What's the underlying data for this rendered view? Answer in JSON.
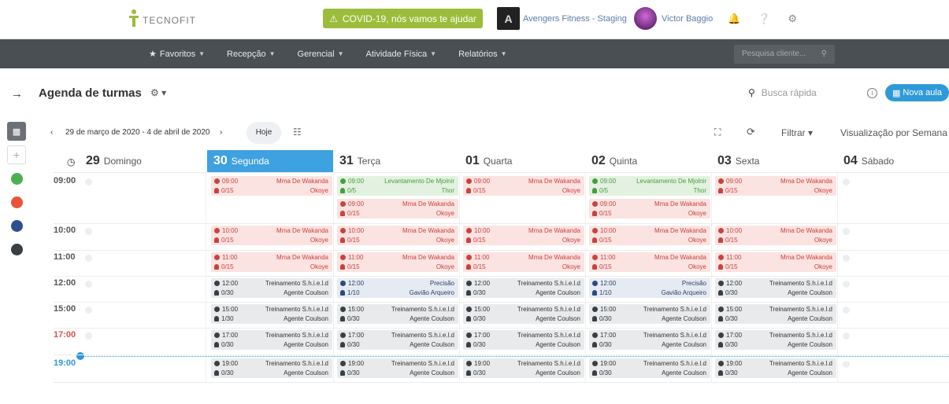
{
  "header": {
    "logo_text": "TECNOFIT",
    "covid_banner": "COVID-19, nós vamos te ajudar",
    "gym_name": "Avengers Fitness - Staging",
    "user_name": "Victor Baggio"
  },
  "nav": {
    "items": [
      {
        "label": "Favoritos"
      },
      {
        "label": "Recepção"
      },
      {
        "label": "Gerencial"
      },
      {
        "label": "Atividade Física"
      },
      {
        "label": "Relatórios"
      }
    ],
    "search_placeholder": "Pesquisa cliente..."
  },
  "page": {
    "title": "Agenda de turmas",
    "quick_search": "Busca rápida",
    "new_class": "Nova aula"
  },
  "toolbar": {
    "date_range": "29 de março de 2020 - 4 de abril de 2020",
    "today": "Hoje",
    "filter": "Filtrar",
    "view": "Visualização por Semana"
  },
  "colors": {
    "accent": "#3ea1e0",
    "nav_bg": "#4a4f54",
    "covid": "#9bbd3b",
    "red": "#c9433e",
    "green": "#4a9a40",
    "blue": "#2b4a82",
    "dark": "#3a3f44"
  },
  "sidebar_colors": [
    "#4caf50",
    "#e8553a",
    "#2e4f8e",
    "#3a3f44"
  ],
  "days": [
    {
      "num": "29",
      "name": "Domingo"
    },
    {
      "num": "30",
      "name": "Segunda",
      "active": true
    },
    {
      "num": "31",
      "name": "Terça"
    },
    {
      "num": "01",
      "name": "Quarta"
    },
    {
      "num": "02",
      "name": "Quinta"
    },
    {
      "num": "03",
      "name": "Sexta"
    },
    {
      "num": "04",
      "name": "Sábado"
    }
  ],
  "times": [
    {
      "label": "09:00"
    },
    {
      "label": "10:00"
    },
    {
      "label": "11:00"
    },
    {
      "label": "12:00"
    },
    {
      "label": "15:00"
    },
    {
      "label": "17:00",
      "style": "red"
    },
    {
      "label": "19:00",
      "style": "blue"
    }
  ],
  "events": [
    {
      "day": 1,
      "row": 0,
      "slot": 0,
      "color": "red",
      "time": "09:00",
      "name": "Mma De Wakanda",
      "count": "0/15",
      "coach": "Okoye"
    },
    {
      "day": 2,
      "row": 0,
      "slot": 0,
      "color": "green",
      "time": "09:00",
      "name": "Levantamento De Mjolnir",
      "count": "0/5",
      "coach": "Thor"
    },
    {
      "day": 2,
      "row": 0,
      "slot": 1,
      "color": "red",
      "time": "09:00",
      "name": "Mma De Wakanda",
      "count": "0/15",
      "coach": "Okoye"
    },
    {
      "day": 3,
      "row": 0,
      "slot": 0,
      "color": "red",
      "time": "09:00",
      "name": "Mma De Wakanda",
      "count": "0/15",
      "coach": "Okoye"
    },
    {
      "day": 4,
      "row": 0,
      "slot": 0,
      "color": "green",
      "time": "09:00",
      "name": "Levantamento De Mjolnir",
      "count": "0/5",
      "coach": "Thor"
    },
    {
      "day": 4,
      "row": 0,
      "slot": 1,
      "color": "red",
      "time": "09:00",
      "name": "Mma De Wakanda",
      "count": "0/15",
      "coach": "Okoye"
    },
    {
      "day": 5,
      "row": 0,
      "slot": 0,
      "color": "red",
      "time": "09:00",
      "name": "Mma De Wakanda",
      "count": "0/15",
      "coach": "Okoye"
    },
    {
      "day": 1,
      "row": 1,
      "slot": 0,
      "color": "red",
      "time": "10:00",
      "name": "Mma De Wakanda",
      "count": "0/15",
      "coach": "Okoye"
    },
    {
      "day": 2,
      "row": 1,
      "slot": 0,
      "color": "red",
      "time": "10:00",
      "name": "Mma De Wakanda",
      "count": "0/15",
      "coach": "Okoye"
    },
    {
      "day": 3,
      "row": 1,
      "slot": 0,
      "color": "red",
      "time": "10:00",
      "name": "Mma De Wakanda",
      "count": "0/15",
      "coach": "Okoye"
    },
    {
      "day": 4,
      "row": 1,
      "slot": 0,
      "color": "red",
      "time": "10:00",
      "name": "Mma De Wakanda",
      "count": "0/15",
      "coach": "Okoye"
    },
    {
      "day": 5,
      "row": 1,
      "slot": 0,
      "color": "red",
      "time": "10:00",
      "name": "Mma De Wakanda",
      "count": "0/15",
      "coach": "Okoye"
    },
    {
      "day": 1,
      "row": 2,
      "slot": 0,
      "color": "red",
      "time": "11:00",
      "name": "Mma De Wakanda",
      "count": "0/15",
      "coach": "Okoye"
    },
    {
      "day": 2,
      "row": 2,
      "slot": 0,
      "color": "red",
      "time": "11:00",
      "name": "Mma De Wakanda",
      "count": "0/15",
      "coach": "Okoye"
    },
    {
      "day": 3,
      "row": 2,
      "slot": 0,
      "color": "red",
      "time": "11:00",
      "name": "Mma De Wakanda",
      "count": "0/15",
      "coach": "Okoye"
    },
    {
      "day": 4,
      "row": 2,
      "slot": 0,
      "color": "red",
      "time": "11:00",
      "name": "Mma De Wakanda",
      "count": "0/15",
      "coach": "Okoye"
    },
    {
      "day": 5,
      "row": 2,
      "slot": 0,
      "color": "red",
      "time": "11:00",
      "name": "Mma De Wakanda",
      "count": "0/15",
      "coach": "Okoye"
    },
    {
      "day": 1,
      "row": 3,
      "slot": 0,
      "color": "dark",
      "time": "12:00",
      "name": "Treinamento S.h.i.e.l.d",
      "count": "0/30",
      "coach": "Agente Coulson"
    },
    {
      "day": 2,
      "row": 3,
      "slot": 0,
      "color": "blue",
      "time": "12:00",
      "name": "Precisão",
      "count": "1/10",
      "coach": "Gavião Arqueiro"
    },
    {
      "day": 3,
      "row": 3,
      "slot": 0,
      "color": "dark",
      "time": "12:00",
      "name": "Treinamento S.h.i.e.l.d",
      "count": "0/30",
      "coach": "Agente Coulson"
    },
    {
      "day": 4,
      "row": 3,
      "slot": 0,
      "color": "blue",
      "time": "12:00",
      "name": "Precisão",
      "count": "1/10",
      "coach": "Gavião Arqueiro"
    },
    {
      "day": 5,
      "row": 3,
      "slot": 0,
      "color": "dark",
      "time": "12:00",
      "name": "Treinamento S.h.i.e.l.d",
      "count": "0/30",
      "coach": "Agente Coulson"
    },
    {
      "day": 1,
      "row": 4,
      "slot": 0,
      "color": "dark",
      "time": "15:00",
      "name": "Treinamento S.h.i.e.l.d",
      "count": "1/30",
      "coach": "Agente Coulson"
    },
    {
      "day": 2,
      "row": 4,
      "slot": 0,
      "color": "dark",
      "time": "15:00",
      "name": "Treinamento S.h.i.e.l.d",
      "count": "0/30",
      "coach": "Agente Coulson"
    },
    {
      "day": 3,
      "row": 4,
      "slot": 0,
      "color": "dark",
      "time": "15:00",
      "name": "Treinamento S.h.i.e.l.d",
      "count": "0/30",
      "coach": "Agente Coulson"
    },
    {
      "day": 4,
      "row": 4,
      "slot": 0,
      "color": "dark",
      "time": "15:00",
      "name": "Treinamento S.h.i.e.l.d",
      "count": "0/30",
      "coach": "Agente Coulson"
    },
    {
      "day": 5,
      "row": 4,
      "slot": 0,
      "color": "dark",
      "time": "15:00",
      "name": "Treinamento S.h.i.e.l.d",
      "count": "0/30",
      "coach": "Agente Coulson"
    },
    {
      "day": 1,
      "row": 5,
      "slot": 0,
      "color": "dark",
      "time": "17:00",
      "name": "Treinamento S.h.i.e.l.d",
      "count": "0/30",
      "coach": "Agente Coulson"
    },
    {
      "day": 2,
      "row": 5,
      "slot": 0,
      "color": "dark",
      "time": "17:00",
      "name": "Treinamento S.h.i.e.l.d",
      "count": "0/30",
      "coach": "Agente Coulson"
    },
    {
      "day": 3,
      "row": 5,
      "slot": 0,
      "color": "dark",
      "time": "17:00",
      "name": "Treinamento S.h.i.e.l.d",
      "count": "0/30",
      "coach": "Agente Coulson"
    },
    {
      "day": 4,
      "row": 5,
      "slot": 0,
      "color": "dark",
      "time": "17:00",
      "name": "Treinamento S.h.i.e.l.d",
      "count": "0/30",
      "coach": "Agente Coulson"
    },
    {
      "day": 5,
      "row": 5,
      "slot": 0,
      "color": "dark",
      "time": "17:00",
      "name": "Treinamento S.h.i.e.l.d",
      "count": "0/30",
      "coach": "Agente Coulson"
    },
    {
      "day": 1,
      "row": 6,
      "slot": 0,
      "color": "dark",
      "time": "19:00",
      "name": "Treinamento S.h.i.e.l.d",
      "count": "0/30",
      "coach": "Agente Coulson"
    },
    {
      "day": 2,
      "row": 6,
      "slot": 0,
      "color": "dark",
      "time": "19:00",
      "name": "Treinamento S.h.i.e.l.d",
      "count": "0/30",
      "coach": "Agente Coulson"
    },
    {
      "day": 3,
      "row": 6,
      "slot": 0,
      "color": "dark",
      "time": "19:00",
      "name": "Treinamento S.h.i.e.l.d",
      "count": "0/30",
      "coach": "Agente Coulson"
    },
    {
      "day": 4,
      "row": 6,
      "slot": 0,
      "color": "dark",
      "time": "19:00",
      "name": "Treinamento S.h.i.e.l.d",
      "count": "0/30",
      "coach": "Agente Coulson"
    },
    {
      "day": 5,
      "row": 6,
      "slot": 0,
      "color": "dark",
      "time": "19:00",
      "name": "Treinamento S.h.i.e.l.d",
      "count": "0/30",
      "coach": "Agente Coulson"
    }
  ]
}
